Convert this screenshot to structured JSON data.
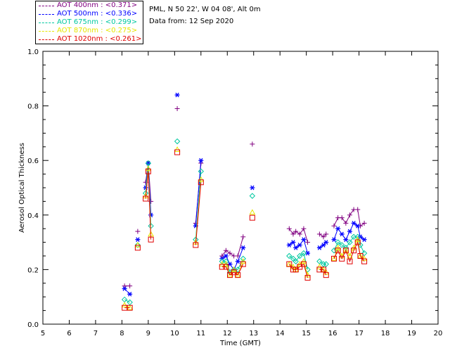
{
  "header": {
    "site": "PML, N 50 22', W 04 08', Alt 0m",
    "date": "Data from: 12 Sep 2020"
  },
  "legend": [
    {
      "label": "AOT  400nm : <0.371>",
      "color": "#800080"
    },
    {
      "label": "AOT  500nm : <0.336>",
      "color": "#0000ff"
    },
    {
      "label": "AOT  675nm : <0.299>",
      "color": "#00c8a0"
    },
    {
      "label": "AOT  870nm : <0.275>",
      "color": "#e6e600"
    },
    {
      "label": "AOT 1020nm : <0.261>",
      "color": "#e00000"
    }
  ],
  "chart_data": {
    "type": "line",
    "xlabel": "Time (GMT)",
    "ylabel": "Aerosol Optical Thickness",
    "xlim": [
      5,
      20
    ],
    "ylim": [
      0.0,
      1.0
    ],
    "xticks": [
      "5",
      "6",
      "7",
      "8",
      "9",
      "10",
      "11",
      "12",
      "13",
      "14",
      "15",
      "16",
      "17",
      "18",
      "19",
      "20"
    ],
    "yticks": [
      "0.0",
      "0.2",
      "0.4",
      "0.6",
      "0.8",
      "1.0"
    ],
    "grid": false,
    "series": [
      {
        "name": "AOT  400nm",
        "color": "#800080",
        "marker": "plus",
        "segments": [
          [
            [
              8.1,
              0.14
            ],
            [
              8.3,
              0.14
            ]
          ],
          [
            [
              8.6,
              0.34
            ]
          ],
          [
            [
              8.9,
              0.52
            ],
            [
              9.0,
              0.59
            ],
            [
              9.1,
              0.45
            ]
          ],
          [
            [
              10.1,
              0.79
            ]
          ],
          [
            [
              10.8,
              0.37
            ],
            [
              11.0,
              0.59
            ]
          ],
          [
            [
              11.8,
              0.25
            ],
            [
              11.95,
              0.27
            ],
            [
              12.1,
              0.26
            ],
            [
              12.25,
              0.25
            ],
            [
              12.4,
              0.25
            ],
            [
              12.6,
              0.32
            ]
          ],
          [
            [
              12.95,
              0.66
            ]
          ],
          [
            [
              14.35,
              0.35
            ],
            [
              14.5,
              0.33
            ],
            [
              14.6,
              0.34
            ],
            [
              14.75,
              0.33
            ],
            [
              14.9,
              0.35
            ],
            [
              15.05,
              0.3
            ]
          ],
          [
            [
              15.5,
              0.33
            ],
            [
              15.65,
              0.32
            ],
            [
              15.75,
              0.33
            ]
          ],
          [
            [
              16.05,
              0.36
            ],
            [
              16.2,
              0.39
            ],
            [
              16.35,
              0.39
            ],
            [
              16.5,
              0.37
            ],
            [
              16.65,
              0.4
            ],
            [
              16.8,
              0.42
            ],
            [
              16.95,
              0.42
            ],
            [
              17.05,
              0.36
            ],
            [
              17.2,
              0.37
            ]
          ]
        ]
      },
      {
        "name": "AOT  500nm",
        "color": "#0000ff",
        "marker": "star",
        "segments": [
          [
            [
              8.1,
              0.13
            ],
            [
              8.3,
              0.11
            ]
          ],
          [
            [
              8.6,
              0.31
            ]
          ],
          [
            [
              8.9,
              0.5
            ],
            [
              9.0,
              0.59
            ],
            [
              9.1,
              0.4
            ]
          ],
          [
            [
              10.1,
              0.84
            ]
          ],
          [
            [
              10.8,
              0.36
            ],
            [
              11.0,
              0.6
            ]
          ],
          [
            [
              11.8,
              0.24
            ],
            [
              11.95,
              0.25
            ],
            [
              12.1,
              0.22
            ],
            [
              12.25,
              0.2
            ],
            [
              12.4,
              0.23
            ],
            [
              12.6,
              0.28
            ]
          ],
          [
            [
              12.95,
              0.5
            ]
          ],
          [
            [
              14.35,
              0.29
            ],
            [
              14.5,
              0.3
            ],
            [
              14.6,
              0.28
            ],
            [
              14.75,
              0.29
            ],
            [
              14.9,
              0.31
            ],
            [
              15.05,
              0.26
            ]
          ],
          [
            [
              15.5,
              0.28
            ],
            [
              15.65,
              0.29
            ],
            [
              15.75,
              0.3
            ]
          ],
          [
            [
              16.05,
              0.31
            ],
            [
              16.2,
              0.35
            ],
            [
              16.35,
              0.33
            ],
            [
              16.5,
              0.31
            ],
            [
              16.65,
              0.34
            ],
            [
              16.8,
              0.37
            ],
            [
              16.95,
              0.36
            ],
            [
              17.05,
              0.32
            ],
            [
              17.2,
              0.31
            ]
          ]
        ]
      },
      {
        "name": "AOT  675nm",
        "color": "#00c8a0",
        "marker": "diamond",
        "segments": [
          [
            [
              8.1,
              0.09
            ],
            [
              8.3,
              0.08
            ]
          ],
          [
            [
              8.6,
              0.29
            ]
          ],
          [
            [
              8.9,
              0.48
            ],
            [
              9.0,
              0.59
            ],
            [
              9.1,
              0.36
            ]
          ],
          [
            [
              10.1,
              0.67
            ]
          ],
          [
            [
              10.8,
              0.31
            ],
            [
              11.0,
              0.56
            ]
          ],
          [
            [
              11.8,
              0.23
            ],
            [
              11.95,
              0.23
            ],
            [
              12.1,
              0.19
            ],
            [
              12.25,
              0.2
            ],
            [
              12.4,
              0.2
            ],
            [
              12.6,
              0.24
            ]
          ],
          [
            [
              12.95,
              0.47
            ]
          ],
          [
            [
              14.35,
              0.25
            ],
            [
              14.5,
              0.24
            ],
            [
              14.6,
              0.23
            ],
            [
              14.75,
              0.25
            ],
            [
              14.9,
              0.26
            ],
            [
              15.05,
              0.2
            ]
          ],
          [
            [
              15.5,
              0.23
            ],
            [
              15.65,
              0.22
            ],
            [
              15.75,
              0.22
            ]
          ],
          [
            [
              16.05,
              0.27
            ],
            [
              16.2,
              0.3
            ],
            [
              16.35,
              0.29
            ],
            [
              16.5,
              0.28
            ],
            [
              16.65,
              0.3
            ],
            [
              16.8,
              0.32
            ],
            [
              16.95,
              0.32
            ],
            [
              17.05,
              0.29
            ],
            [
              17.2,
              0.26
            ]
          ]
        ]
      },
      {
        "name": "AOT  870nm",
        "color": "#e6e600",
        "marker": "triangle",
        "segments": [
          [
            [
              8.1,
              0.07
            ],
            [
              8.3,
              0.06
            ]
          ],
          [
            [
              8.6,
              0.29
            ]
          ],
          [
            [
              8.9,
              0.47
            ],
            [
              9.0,
              0.57
            ],
            [
              9.1,
              0.33
            ]
          ],
          [
            [
              10.1,
              0.64
            ]
          ],
          [
            [
              10.8,
              0.3
            ],
            [
              11.0,
              0.53
            ]
          ],
          [
            [
              11.8,
              0.22
            ],
            [
              11.95,
              0.22
            ],
            [
              12.1,
              0.18
            ],
            [
              12.25,
              0.2
            ],
            [
              12.4,
              0.18
            ],
            [
              12.6,
              0.23
            ]
          ],
          [
            [
              12.95,
              0.41
            ]
          ],
          [
            [
              14.35,
              0.22
            ],
            [
              14.5,
              0.21
            ],
            [
              14.6,
              0.2
            ],
            [
              14.75,
              0.22
            ],
            [
              14.9,
              0.23
            ],
            [
              15.05,
              0.18
            ]
          ],
          [
            [
              15.5,
              0.21
            ],
            [
              15.65,
              0.2
            ],
            [
              15.75,
              0.19
            ]
          ],
          [
            [
              16.05,
              0.24
            ],
            [
              16.2,
              0.28
            ],
            [
              16.35,
              0.25
            ],
            [
              16.5,
              0.27
            ],
            [
              16.65,
              0.25
            ],
            [
              16.8,
              0.28
            ],
            [
              16.95,
              0.31
            ],
            [
              17.05,
              0.25
            ],
            [
              17.2,
              0.24
            ]
          ]
        ]
      },
      {
        "name": "AOT 1020nm",
        "color": "#e00000",
        "marker": "square",
        "segments": [
          [
            [
              8.1,
              0.06
            ],
            [
              8.3,
              0.06
            ]
          ],
          [
            [
              8.6,
              0.28
            ]
          ],
          [
            [
              8.9,
              0.46
            ],
            [
              9.0,
              0.56
            ],
            [
              9.1,
              0.31
            ]
          ],
          [
            [
              10.1,
              0.63
            ]
          ],
          [
            [
              10.8,
              0.29
            ],
            [
              11.0,
              0.52
            ]
          ],
          [
            [
              11.8,
              0.21
            ],
            [
              11.95,
              0.21
            ],
            [
              12.1,
              0.18
            ],
            [
              12.25,
              0.19
            ],
            [
              12.4,
              0.18
            ],
            [
              12.6,
              0.22
            ]
          ],
          [
            [
              12.95,
              0.39
            ]
          ],
          [
            [
              14.35,
              0.22
            ],
            [
              14.5,
              0.2
            ],
            [
              14.6,
              0.2
            ],
            [
              14.75,
              0.21
            ],
            [
              14.9,
              0.22
            ],
            [
              15.05,
              0.17
            ]
          ],
          [
            [
              15.5,
              0.2
            ],
            [
              15.65,
              0.2
            ],
            [
              15.75,
              0.18
            ]
          ],
          [
            [
              16.05,
              0.24
            ],
            [
              16.2,
              0.27
            ],
            [
              16.35,
              0.24
            ],
            [
              16.5,
              0.27
            ],
            [
              16.65,
              0.23
            ],
            [
              16.8,
              0.27
            ],
            [
              16.95,
              0.3
            ],
            [
              17.05,
              0.25
            ],
            [
              17.2,
              0.23
            ]
          ]
        ]
      }
    ]
  }
}
